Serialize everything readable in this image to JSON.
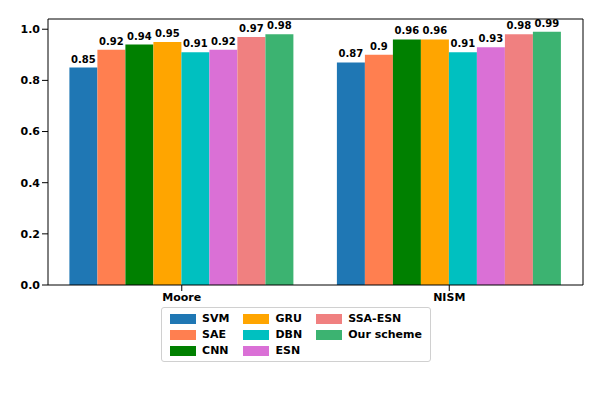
{
  "chart_data": {
    "type": "bar",
    "categories": [
      "Moore",
      "NISM"
    ],
    "series": [
      {
        "name": "SVM",
        "color": "#1f77b4",
        "values": [
          0.85,
          0.87
        ]
      },
      {
        "name": "SAE",
        "color": "#ff7f50",
        "values": [
          0.92,
          0.9
        ]
      },
      {
        "name": "CNN",
        "color": "#008000",
        "values": [
          0.94,
          0.96
        ]
      },
      {
        "name": "GRU",
        "color": "#ffa500",
        "values": [
          0.95,
          0.96
        ]
      },
      {
        "name": "DBN",
        "color": "#00c0c0",
        "values": [
          0.91,
          0.91
        ]
      },
      {
        "name": "ESN",
        "color": "#da70d6",
        "values": [
          0.92,
          0.93
        ]
      },
      {
        "name": "SSA-ESN",
        "color": "#f08080",
        "values": [
          0.97,
          0.98
        ]
      },
      {
        "name": "Our scheme",
        "color": "#3cb371",
        "values": [
          0.98,
          0.99
        ]
      }
    ],
    "ylim": [
      0,
      1.04
    ],
    "yticks": [
      {
        "value": 0,
        "label": "0.0"
      },
      0.2,
      0.4,
      0.6,
      0.8,
      {
        "value": 1,
        "label": "1.0"
      }
    ],
    "grid": false,
    "legend": "bottom",
    "data_labels": true
  }
}
